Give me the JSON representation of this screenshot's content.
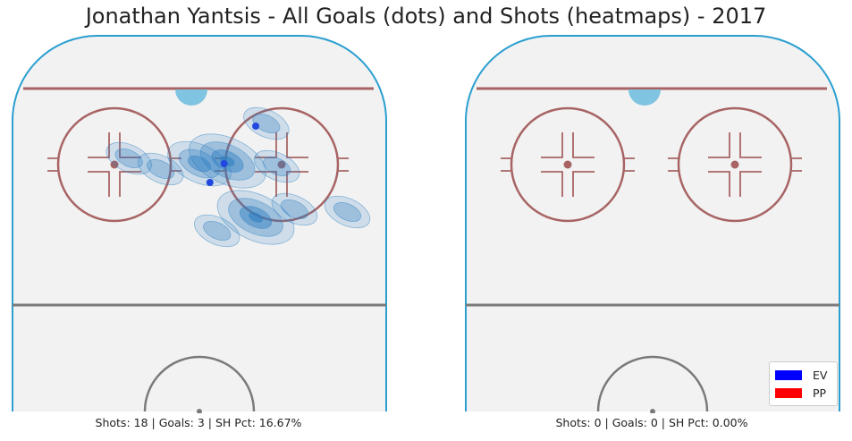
{
  "title": "Jonathan Yantsis - All Goals (dots) and Shots (heatmaps) - 2017",
  "chart_data": [
    {
      "type": "heatmap",
      "panel": "all",
      "caption": "Shots: 18 | Goals: 3 | SH Pct: 16.67%",
      "grid": false,
      "shots_heatmap": [
        {
          "x": 58,
          "y": 27,
          "level": 3
        },
        {
          "x": 50,
          "y": 28,
          "level": 2
        },
        {
          "x": 72,
          "y": 29,
          "level": 1
        },
        {
          "x": 30,
          "y": 26,
          "level": 1
        },
        {
          "x": 39,
          "y": 30,
          "level": 1
        },
        {
          "x": 66,
          "y": 48,
          "level": 3
        },
        {
          "x": 77,
          "y": 45,
          "level": 1
        },
        {
          "x": 92,
          "y": 46,
          "level": 1
        },
        {
          "x": 69,
          "y": 13,
          "level": 1
        },
        {
          "x": 55,
          "y": 53,
          "level": 1
        }
      ],
      "goals": [
        {
          "x": 57,
          "y": 28,
          "strength": "EV"
        },
        {
          "x": 53,
          "y": 35,
          "strength": "EV"
        },
        {
          "x": 66,
          "y": 14,
          "strength": "EV"
        }
      ]
    },
    {
      "type": "heatmap",
      "panel": "empty",
      "caption": "Shots: 0 | Goals: 0 | SH Pct: 0.00%",
      "grid": false,
      "shots_heatmap": [],
      "goals": []
    }
  ],
  "legend": {
    "placement": "lower-right",
    "items": [
      {
        "label": "EV",
        "color": "#0000ff"
      },
      {
        "label": "PP",
        "color": "#ff0000"
      }
    ]
  },
  "colors": {
    "ice": "#f2f2f2",
    "boards": "#2a9fd0",
    "goal_line": "#a86464",
    "faceoff": "#a86464",
    "crease": "#7fc4e0",
    "center_line": "#7a7a7a",
    "heat": "#2f7fc2",
    "goal_dot": "#2247e0"
  }
}
